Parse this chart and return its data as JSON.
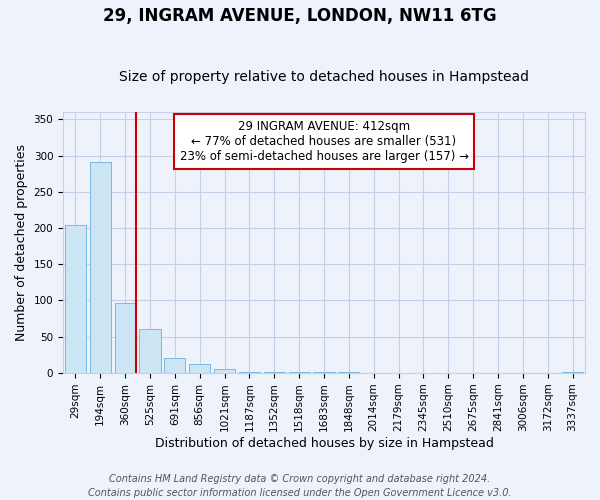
{
  "title": "29, INGRAM AVENUE, LONDON, NW11 6TG",
  "subtitle": "Size of property relative to detached houses in Hampstead",
  "xlabel": "Distribution of detached houses by size in Hampstead",
  "ylabel": "Number of detached properties",
  "categories": [
    "29sqm",
    "194sqm",
    "360sqm",
    "525sqm",
    "691sqm",
    "856sqm",
    "1021sqm",
    "1187sqm",
    "1352sqm",
    "1518sqm",
    "1683sqm",
    "1848sqm",
    "2014sqm",
    "2179sqm",
    "2345sqm",
    "2510sqm",
    "2675sqm",
    "2841sqm",
    "3006sqm",
    "3172sqm",
    "3337sqm"
  ],
  "values": [
    204,
    291,
    97,
    61,
    20,
    12,
    5,
    2,
    2,
    2,
    1,
    1,
    0,
    0,
    0,
    0,
    0,
    0,
    0,
    0,
    2
  ],
  "bar_color": "#cce5f5",
  "bar_edge_color": "#7ab8e0",
  "vline_color": "#cc0000",
  "annotation_text": "29 INGRAM AVENUE: 412sqm\n← 77% of detached houses are smaller (531)\n23% of semi-detached houses are larger (157) →",
  "annotation_box_color": "white",
  "annotation_box_edge": "#cc0000",
  "ylim": [
    0,
    360
  ],
  "yticks": [
    0,
    50,
    100,
    150,
    200,
    250,
    300,
    350
  ],
  "footer_line1": "Contains HM Land Registry data © Crown copyright and database right 2024.",
  "footer_line2": "Contains public sector information licensed under the Open Government Licence v3.0.",
  "bg_color": "#eef2fb",
  "grid_color": "#c5cfe8",
  "title_fontsize": 12,
  "subtitle_fontsize": 10,
  "label_fontsize": 9,
  "tick_fontsize": 7.5,
  "footer_fontsize": 7,
  "annot_fontsize": 8.5
}
